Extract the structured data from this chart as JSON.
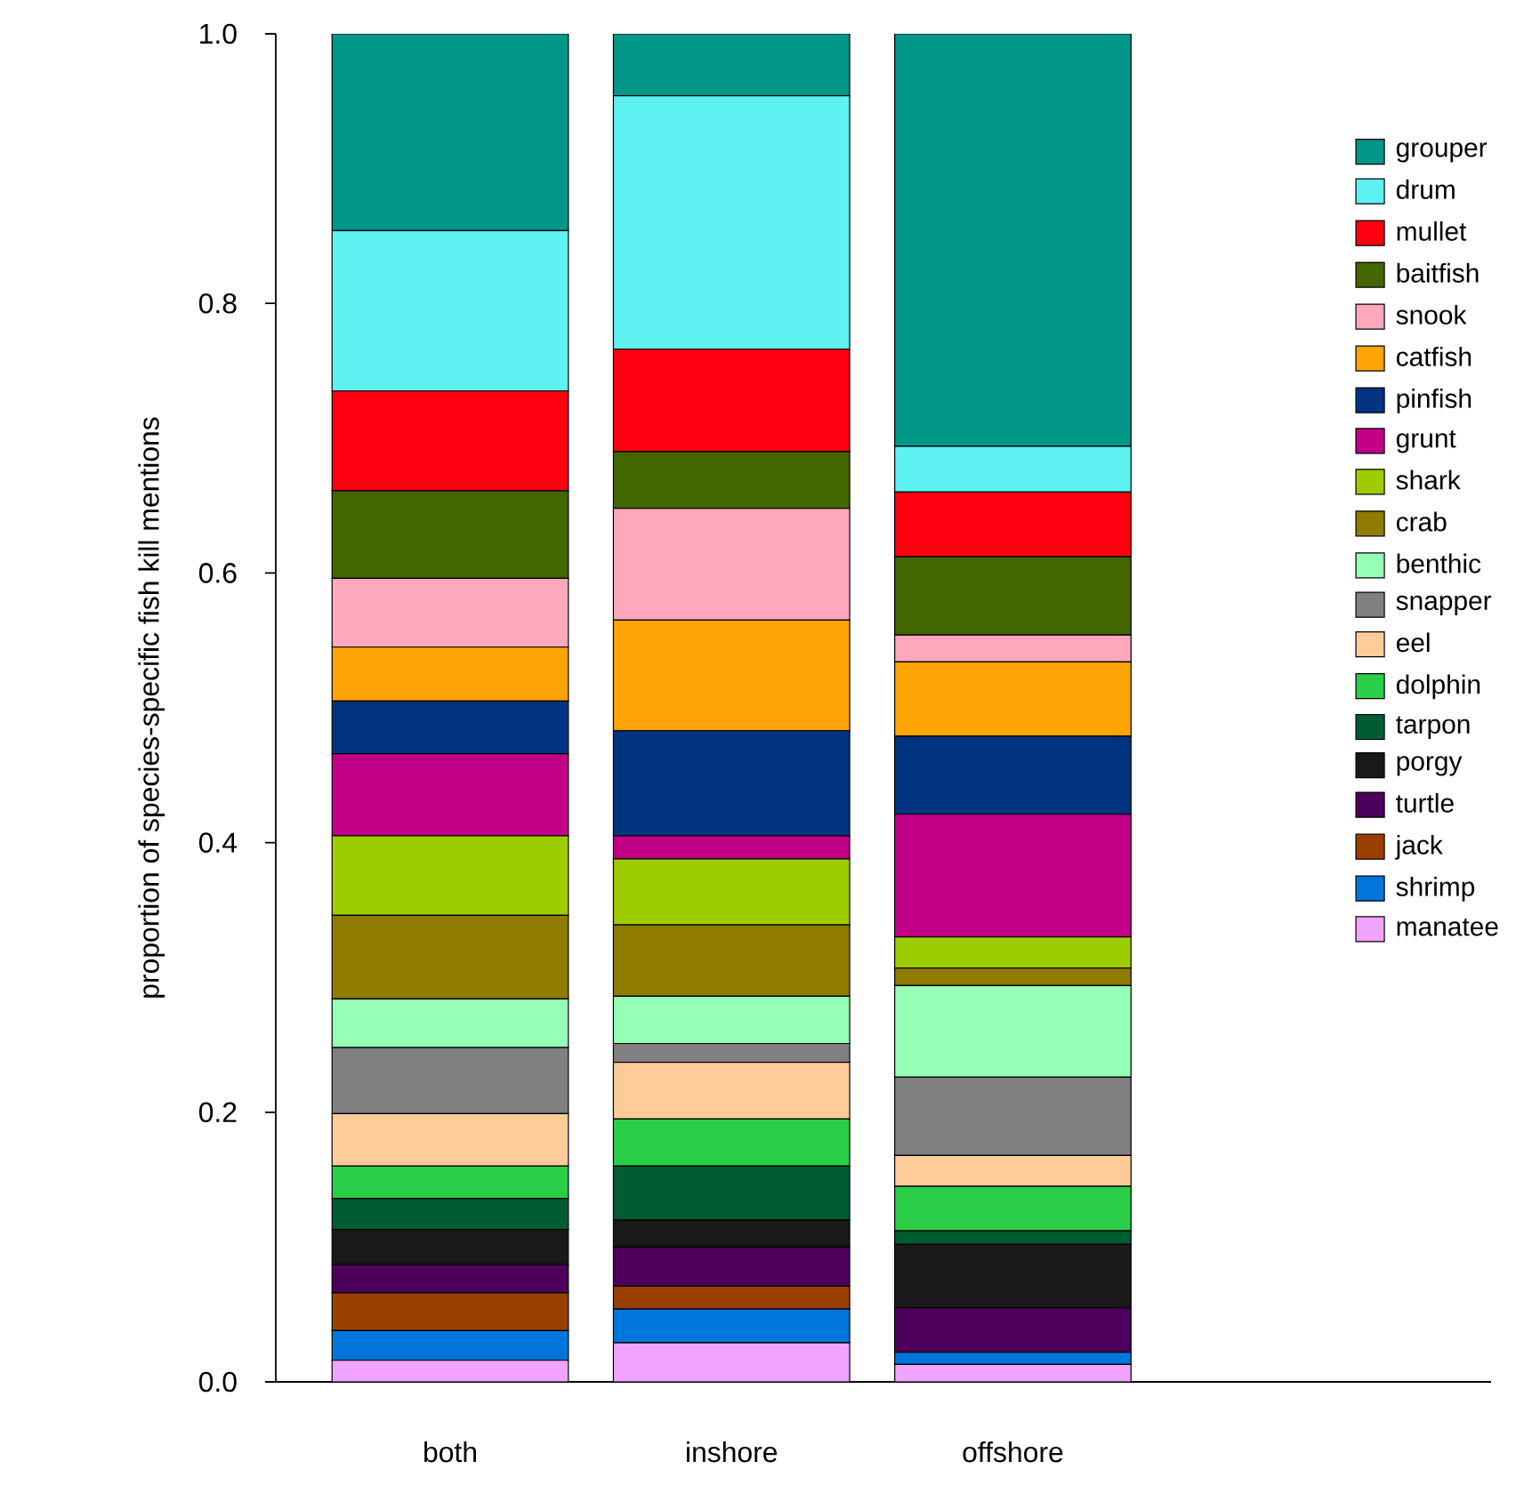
{
  "chart_data": {
    "type": "bar",
    "stacked": true,
    "legend": "right",
    "ylabel": "proportion of species-specific fish kill mentions",
    "categories": [
      "both",
      "inshore",
      "offshore"
    ],
    "ylim": [
      0,
      1
    ],
    "yticks": [
      {
        "value": 0,
        "label": "0.0"
      },
      {
        "value": 0.2,
        "label": "0.2"
      },
      {
        "value": 0.4,
        "label": "0.4"
      },
      {
        "value": 0.6,
        "label": "0.6"
      },
      {
        "value": 0.8,
        "label": "0.8"
      },
      {
        "value": 1,
        "label": "1.0"
      }
    ],
    "series": [
      {
        "name": "manatee",
        "color": "#f0a3ff",
        "values": [
          0.016,
          0.029,
          0.013
        ]
      },
      {
        "name": "shrimp",
        "color": "#0075dc",
        "values": [
          0.022,
          0.025,
          0.009
        ]
      },
      {
        "name": "jack",
        "color": "#993f00",
        "values": [
          0.028,
          0.017,
          0
        ]
      },
      {
        "name": "turtle",
        "color": "#4c005c",
        "values": [
          0.021,
          0.029,
          0.033
        ]
      },
      {
        "name": "porgy",
        "color": "#191919",
        "values": [
          0.026,
          0.02,
          0.047
        ]
      },
      {
        "name": "tarpon",
        "color": "#005c31",
        "values": [
          0.023,
          0.04,
          0.01
        ]
      },
      {
        "name": "dolphin",
        "color": "#2bce48",
        "values": [
          0.024,
          0.035,
          0.033
        ]
      },
      {
        "name": "eel",
        "color": "#ffcc99",
        "values": [
          0.039,
          0.042,
          0.023
        ]
      },
      {
        "name": "snapper",
        "color": "#808080",
        "values": [
          0.049,
          0.014,
          0.058
        ]
      },
      {
        "name": "benthic",
        "color": "#94ffb5",
        "values": [
          0.036,
          0.035,
          0.068
        ]
      },
      {
        "name": "crab",
        "color": "#8f7c00",
        "values": [
          0.062,
          0.053,
          0.013
        ]
      },
      {
        "name": "shark",
        "color": "#9dcc00",
        "values": [
          0.059,
          0.049,
          0.023
        ]
      },
      {
        "name": "grunt",
        "color": "#c20088",
        "values": [
          0.061,
          0.017,
          0.091
        ]
      },
      {
        "name": "pinfish",
        "color": "#003380",
        "values": [
          0.039,
          0.078,
          0.058
        ]
      },
      {
        "name": "catfish",
        "color": "#ffa405",
        "values": [
          0.04,
          0.082,
          0.055
        ]
      },
      {
        "name": "snook",
        "color": "#ffa8bb",
        "values": [
          0.051,
          0.083,
          0.02
        ]
      },
      {
        "name": "baitfish",
        "color": "#426600",
        "values": [
          0.065,
          0.042,
          0.058
        ]
      },
      {
        "name": "mullet",
        "color": "#ff0010",
        "values": [
          0.074,
          0.076,
          0.048
        ]
      },
      {
        "name": "drum",
        "color": "#5ef1f2",
        "values": [
          0.119,
          0.188,
          0.034
        ]
      },
      {
        "name": "grouper",
        "color": "#009688",
        "values": [
          0.146,
          0.046,
          0.306
        ]
      }
    ]
  }
}
